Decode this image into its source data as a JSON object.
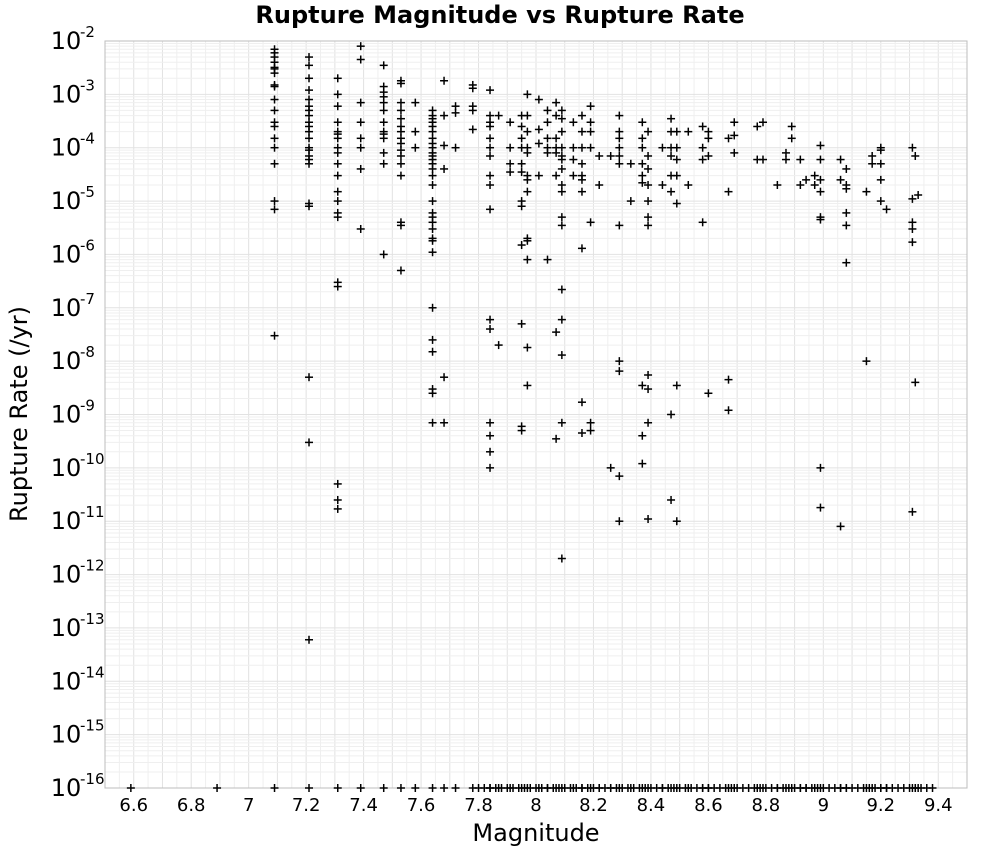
{
  "chart_data": {
    "type": "scatter",
    "title": "Rupture Magnitude vs Rupture Rate",
    "xlabel": "Magnitude",
    "ylabel": "Rupture Rate (/yr)",
    "xlim": [
      6.5,
      9.5
    ],
    "ylim": [
      1e-16,
      0.01
    ],
    "yscale": "log",
    "grid": true,
    "marker": "plus",
    "x_ticks": [
      "6.6",
      "6.8",
      "7",
      "7.2",
      "7.4",
      "7.6",
      "7.8",
      "8",
      "8.2",
      "8.4",
      "8.6",
      "8.8",
      "9",
      "9.2",
      "9.4"
    ],
    "y_ticks": [
      {
        "base": "10",
        "exp": "-2"
      },
      {
        "base": "10",
        "exp": "-3"
      },
      {
        "base": "10",
        "exp": "-4"
      },
      {
        "base": "10",
        "exp": "-5"
      },
      {
        "base": "10",
        "exp": "-6"
      },
      {
        "base": "10",
        "exp": "-7"
      },
      {
        "base": "10",
        "exp": "-8"
      },
      {
        "base": "10",
        "exp": "-9"
      },
      {
        "base": "10",
        "exp": "-10"
      },
      {
        "base": "10",
        "exp": "-11"
      },
      {
        "base": "10",
        "exp": "-12"
      },
      {
        "base": "10",
        "exp": "-13"
      },
      {
        "base": "10",
        "exp": "-14"
      },
      {
        "base": "10",
        "exp": "-15"
      },
      {
        "base": "10",
        "exp": "-16"
      }
    ],
    "points": [
      [
        7.09,
        0.007
      ],
      [
        7.09,
        0.006
      ],
      [
        7.09,
        0.005
      ],
      [
        7.09,
        0.004
      ],
      [
        7.09,
        0.0032
      ],
      [
        7.09,
        0.003
      ],
      [
        7.09,
        0.0025
      ],
      [
        7.09,
        0.0015
      ],
      [
        7.09,
        0.0014
      ],
      [
        7.09,
        0.0008
      ],
      [
        7.09,
        0.0005
      ],
      [
        7.09,
        0.0003
      ],
      [
        7.09,
        0.00025
      ],
      [
        7.09,
        0.00015
      ],
      [
        7.09,
        0.0001
      ],
      [
        7.09,
        5e-05
      ],
      [
        7.09,
        1e-05
      ],
      [
        7.09,
        7e-06
      ],
      [
        7.09,
        3e-08
      ],
      [
        7.21,
        0.005
      ],
      [
        7.21,
        0.0035
      ],
      [
        7.21,
        0.002
      ],
      [
        7.21,
        0.0012
      ],
      [
        7.21,
        0.0008
      ],
      [
        7.21,
        0.0006
      ],
      [
        7.21,
        0.0005
      ],
      [
        7.21,
        0.0004
      ],
      [
        7.21,
        0.0003
      ],
      [
        7.21,
        0.00025
      ],
      [
        7.21,
        0.0002
      ],
      [
        7.21,
        0.00015
      ],
      [
        7.21,
        0.0001
      ],
      [
        7.21,
        9e-05
      ],
      [
        7.21,
        7e-05
      ],
      [
        7.21,
        6e-05
      ],
      [
        7.21,
        5e-05
      ],
      [
        7.21,
        9e-06
      ],
      [
        7.21,
        8e-06
      ],
      [
        7.21,
        5e-09
      ],
      [
        7.21,
        3e-10
      ],
      [
        7.21,
        6e-14
      ],
      [
        7.31,
        0.002
      ],
      [
        7.31,
        0.001
      ],
      [
        7.31,
        0.0006
      ],
      [
        7.31,
        0.0003
      ],
      [
        7.31,
        0.0002
      ],
      [
        7.31,
        0.00018
      ],
      [
        7.31,
        0.00015
      ],
      [
        7.31,
        0.0001
      ],
      [
        7.31,
        8e-05
      ],
      [
        7.31,
        5e-05
      ],
      [
        7.31,
        3e-05
      ],
      [
        7.31,
        1.5e-05
      ],
      [
        7.31,
        1e-05
      ],
      [
        7.31,
        6e-06
      ],
      [
        7.31,
        5e-06
      ],
      [
        7.31,
        3e-07
      ],
      [
        7.31,
        2.5e-07
      ],
      [
        7.31,
        5e-11
      ],
      [
        7.31,
        2.5e-11
      ],
      [
        7.31,
        1.7e-11
      ],
      [
        7.39,
        0.008
      ],
      [
        7.39,
        0.0045
      ],
      [
        7.39,
        0.0007
      ],
      [
        7.39,
        0.0003
      ],
      [
        7.39,
        0.00015
      ],
      [
        7.39,
        0.0001
      ],
      [
        7.39,
        4e-05
      ],
      [
        7.39,
        3e-06
      ],
      [
        7.47,
        0.0035
      ],
      [
        7.47,
        0.0014
      ],
      [
        7.47,
        0.0011
      ],
      [
        7.47,
        0.0009
      ],
      [
        7.47,
        0.0007
      ],
      [
        7.47,
        0.0005
      ],
      [
        7.47,
        0.0003
      ],
      [
        7.47,
        0.0002
      ],
      [
        7.47,
        0.00018
      ],
      [
        7.47,
        0.00015
      ],
      [
        7.47,
        8e-05
      ],
      [
        7.47,
        5e-05
      ],
      [
        7.47,
        1e-06
      ],
      [
        7.53,
        0.0018
      ],
      [
        7.53,
        0.0016
      ],
      [
        7.53,
        0.0007
      ],
      [
        7.53,
        0.0005
      ],
      [
        7.53,
        0.00035
      ],
      [
        7.53,
        0.00025
      ],
      [
        7.53,
        0.0002
      ],
      [
        7.53,
        0.00015
      ],
      [
        7.53,
        0.00012
      ],
      [
        7.53,
        9e-05
      ],
      [
        7.53,
        7e-05
      ],
      [
        7.53,
        5e-05
      ],
      [
        7.53,
        3e-05
      ],
      [
        7.53,
        4e-06
      ],
      [
        7.53,
        3.5e-06
      ],
      [
        7.53,
        5e-07
      ],
      [
        7.58,
        0.0007
      ],
      [
        7.58,
        0.0002
      ],
      [
        7.58,
        0.0001
      ],
      [
        7.64,
        0.0005
      ],
      [
        7.64,
        0.0004
      ],
      [
        7.64,
        0.00035
      ],
      [
        7.64,
        0.0003
      ],
      [
        7.64,
        0.00025
      ],
      [
        7.64,
        0.0002
      ],
      [
        7.64,
        0.00015
      ],
      [
        7.64,
        0.00012
      ],
      [
        7.64,
        0.0001
      ],
      [
        7.64,
        8e-05
      ],
      [
        7.64,
        7e-05
      ],
      [
        7.64,
        6e-05
      ],
      [
        7.64,
        5e-05
      ],
      [
        7.64,
        4e-05
      ],
      [
        7.64,
        3e-05
      ],
      [
        7.64,
        2e-05
      ],
      [
        7.64,
        1e-05
      ],
      [
        7.64,
        6e-06
      ],
      [
        7.64,
        5e-06
      ],
      [
        7.64,
        4e-06
      ],
      [
        7.64,
        3e-06
      ],
      [
        7.64,
        2e-06
      ],
      [
        7.64,
        1.8e-06
      ],
      [
        7.64,
        1.1e-06
      ],
      [
        7.64,
        1e-07
      ],
      [
        7.64,
        2.5e-08
      ],
      [
        7.64,
        1.5e-08
      ],
      [
        7.64,
        3e-09
      ],
      [
        7.64,
        2.5e-09
      ],
      [
        7.64,
        7e-10
      ],
      [
        7.68,
        0.0018
      ],
      [
        7.68,
        0.0004
      ],
      [
        7.68,
        0.00011
      ],
      [
        7.68,
        4e-05
      ],
      [
        7.68,
        5e-09
      ],
      [
        7.68,
        7e-10
      ],
      [
        7.72,
        0.0006
      ],
      [
        7.72,
        0.00045
      ],
      [
        7.72,
        0.0001
      ],
      [
        7.78,
        0.0015
      ],
      [
        7.78,
        0.0013
      ],
      [
        7.78,
        0.0006
      ],
      [
        7.78,
        0.0005
      ],
      [
        7.78,
        0.00022
      ],
      [
        7.84,
        0.0012
      ],
      [
        7.84,
        0.0004
      ],
      [
        7.84,
        0.0003
      ],
      [
        7.84,
        0.00025
      ],
      [
        7.84,
        0.00015
      ],
      [
        7.84,
        0.0001
      ],
      [
        7.84,
        7e-05
      ],
      [
        7.84,
        3e-05
      ],
      [
        7.84,
        2e-05
      ],
      [
        7.84,
        7e-06
      ],
      [
        7.84,
        6e-08
      ],
      [
        7.84,
        4e-08
      ],
      [
        7.84,
        7e-10
      ],
      [
        7.84,
        4e-10
      ],
      [
        7.84,
        2e-10
      ],
      [
        7.84,
        1e-10
      ],
      [
        7.87,
        0.0004
      ],
      [
        7.87,
        2e-08
      ],
      [
        7.91,
        0.0003
      ],
      [
        7.91,
        0.0001
      ],
      [
        7.91,
        5e-05
      ],
      [
        7.91,
        3.5e-05
      ],
      [
        7.95,
        0.0004
      ],
      [
        7.95,
        0.00025
      ],
      [
        7.95,
        0.00015
      ],
      [
        7.95,
        0.0001
      ],
      [
        7.95,
        5e-05
      ],
      [
        7.95,
        3.5e-05
      ],
      [
        7.95,
        1e-05
      ],
      [
        7.95,
        8e-06
      ],
      [
        7.95,
        1.5e-06
      ],
      [
        7.95,
        5e-08
      ],
      [
        7.95,
        5e-10
      ],
      [
        7.95,
        6e-10
      ],
      [
        7.97,
        0.001
      ],
      [
        7.97,
        0.0004
      ],
      [
        7.97,
        0.0002
      ],
      [
        7.97,
        0.0001
      ],
      [
        7.97,
        8e-05
      ],
      [
        7.97,
        3e-05
      ],
      [
        7.97,
        2.5e-05
      ],
      [
        7.97,
        1.5e-05
      ],
      [
        7.97,
        2e-06
      ],
      [
        7.97,
        1.8e-06
      ],
      [
        7.97,
        8e-07
      ],
      [
        7.97,
        1.8e-08
      ],
      [
        7.97,
        3.5e-09
      ],
      [
        8.01,
        0.0008
      ],
      [
        8.01,
        0.00022
      ],
      [
        8.01,
        0.00012
      ],
      [
        8.01,
        3e-05
      ],
      [
        8.04,
        0.0005
      ],
      [
        8.04,
        0.0003
      ],
      [
        8.04,
        0.00015
      ],
      [
        8.04,
        0.0001
      ],
      [
        8.04,
        8e-05
      ],
      [
        8.04,
        8e-07
      ],
      [
        8.07,
        0.0007
      ],
      [
        8.07,
        0.0004
      ],
      [
        8.07,
        0.00015
      ],
      [
        8.07,
        0.0001
      ],
      [
        8.07,
        8e-05
      ],
      [
        8.07,
        3e-05
      ],
      [
        8.07,
        3.5e-08
      ],
      [
        8.07,
        3.5e-10
      ],
      [
        8.09,
        0.0005
      ],
      [
        8.09,
        0.00035
      ],
      [
        8.09,
        0.0002
      ],
      [
        8.09,
        0.0001
      ],
      [
        8.09,
        7e-05
      ],
      [
        8.09,
        6e-05
      ],
      [
        8.09,
        4e-05
      ],
      [
        8.09,
        2e-05
      ],
      [
        8.09,
        1.5e-05
      ],
      [
        8.09,
        5e-06
      ],
      [
        8.09,
        3.5e-06
      ],
      [
        8.09,
        2.2e-07
      ],
      [
        8.09,
        6e-08
      ],
      [
        8.09,
        1.3e-08
      ],
      [
        8.09,
        7e-10
      ],
      [
        8.09,
        2e-12
      ],
      [
        8.13,
        0.0003
      ],
      [
        8.13,
        0.0001
      ],
      [
        8.13,
        6e-05
      ],
      [
        8.13,
        3e-05
      ],
      [
        8.16,
        0.0004
      ],
      [
        8.16,
        0.0002
      ],
      [
        8.16,
        0.0001
      ],
      [
        8.16,
        5e-05
      ],
      [
        8.16,
        3e-05
      ],
      [
        8.16,
        2.5e-05
      ],
      [
        8.16,
        1.5e-05
      ],
      [
        8.16,
        1.3e-06
      ],
      [
        8.16,
        1.7e-09
      ],
      [
        8.16,
        4.5e-10
      ],
      [
        8.19,
        0.0006
      ],
      [
        8.19,
        0.0003
      ],
      [
        8.19,
        0.0002
      ],
      [
        8.19,
        0.0001
      ],
      [
        8.19,
        4e-06
      ],
      [
        8.19,
        7e-10
      ],
      [
        8.19,
        5e-10
      ],
      [
        8.22,
        7e-05
      ],
      [
        8.22,
        2e-05
      ],
      [
        8.26,
        7e-05
      ],
      [
        8.26,
        1e-10
      ],
      [
        8.29,
        0.0004
      ],
      [
        8.29,
        0.0002
      ],
      [
        8.29,
        0.00015
      ],
      [
        8.29,
        0.0001
      ],
      [
        8.29,
        7e-05
      ],
      [
        8.29,
        5e-05
      ],
      [
        8.29,
        3.5e-06
      ],
      [
        8.29,
        1e-08
      ],
      [
        8.29,
        6.5e-09
      ],
      [
        8.29,
        7e-11
      ],
      [
        8.29,
        1e-11
      ],
      [
        8.33,
        1e-05
      ],
      [
        8.33,
        5e-05
      ],
      [
        8.37,
        0.0003
      ],
      [
        8.37,
        0.00015
      ],
      [
        8.37,
        0.0001
      ],
      [
        8.37,
        5e-05
      ],
      [
        8.37,
        3e-05
      ],
      [
        8.37,
        2.2e-05
      ],
      [
        8.37,
        3.5e-09
      ],
      [
        8.37,
        4e-10
      ],
      [
        8.37,
        1.2e-10
      ],
      [
        8.39,
        0.0002
      ],
      [
        8.39,
        7e-05
      ],
      [
        8.39,
        4e-05
      ],
      [
        8.39,
        2e-05
      ],
      [
        8.39,
        1e-05
      ],
      [
        8.39,
        5e-06
      ],
      [
        8.39,
        3.5e-06
      ],
      [
        8.39,
        5.5e-09
      ],
      [
        8.39,
        3e-09
      ],
      [
        8.39,
        7e-10
      ],
      [
        8.39,
        1.1e-11
      ],
      [
        8.44,
        0.0001
      ],
      [
        8.44,
        2e-05
      ],
      [
        8.47,
        0.00035
      ],
      [
        8.47,
        0.0002
      ],
      [
        8.47,
        0.0001
      ],
      [
        8.47,
        7e-05
      ],
      [
        8.47,
        3e-05
      ],
      [
        8.47,
        1.5e-05
      ],
      [
        8.47,
        1e-09
      ],
      [
        8.47,
        2.5e-11
      ],
      [
        8.49,
        0.0002
      ],
      [
        8.49,
        0.0001
      ],
      [
        8.49,
        6e-05
      ],
      [
        8.49,
        3e-05
      ],
      [
        8.49,
        9e-06
      ],
      [
        8.49,
        3.5e-09
      ],
      [
        8.49,
        1e-11
      ],
      [
        8.53,
        0.0002
      ],
      [
        8.53,
        2e-05
      ],
      [
        8.58,
        0.00025
      ],
      [
        8.58,
        0.0001
      ],
      [
        8.58,
        6e-05
      ],
      [
        8.58,
        4e-06
      ],
      [
        8.6,
        0.0002
      ],
      [
        8.6,
        0.00015
      ],
      [
        8.6,
        7e-05
      ],
      [
        8.6,
        2.5e-09
      ],
      [
        8.67,
        0.00015
      ],
      [
        8.67,
        1.5e-05
      ],
      [
        8.67,
        4.5e-09
      ],
      [
        8.67,
        1.2e-09
      ],
      [
        8.69,
        0.0003
      ],
      [
        8.69,
        0.00017
      ],
      [
        8.69,
        8e-05
      ],
      [
        8.77,
        0.00025
      ],
      [
        8.77,
        6e-05
      ],
      [
        8.79,
        0.0003
      ],
      [
        8.79,
        6e-05
      ],
      [
        8.84,
        2e-05
      ],
      [
        8.87,
        8e-05
      ],
      [
        8.87,
        6e-05
      ],
      [
        8.89,
        0.00025
      ],
      [
        8.89,
        0.00015
      ],
      [
        8.92,
        6e-05
      ],
      [
        8.92,
        2e-05
      ],
      [
        8.94,
        2.5e-05
      ],
      [
        8.97,
        3e-05
      ],
      [
        8.97,
        2e-05
      ],
      [
        8.99,
        0.00011
      ],
      [
        8.99,
        6e-05
      ],
      [
        8.99,
        2.5e-05
      ],
      [
        8.99,
        1.5e-05
      ],
      [
        8.99,
        5e-06
      ],
      [
        8.99,
        4.5e-06
      ],
      [
        8.99,
        1e-10
      ],
      [
        8.99,
        1.8e-11
      ],
      [
        9.06,
        6e-05
      ],
      [
        9.06,
        2.5e-05
      ],
      [
        9.06,
        8e-12
      ],
      [
        9.08,
        4e-05
      ],
      [
        9.08,
        2e-05
      ],
      [
        9.08,
        1.7e-05
      ],
      [
        9.08,
        6e-06
      ],
      [
        9.08,
        3.5e-06
      ],
      [
        9.08,
        7e-07
      ],
      [
        9.15,
        1.5e-05
      ],
      [
        9.15,
        1e-08
      ],
      [
        9.17,
        7e-05
      ],
      [
        9.17,
        5e-05
      ],
      [
        9.2,
        0.0001
      ],
      [
        9.2,
        9e-05
      ],
      [
        9.2,
        5e-05
      ],
      [
        9.2,
        2.5e-05
      ],
      [
        9.2,
        1e-05
      ],
      [
        9.22,
        7e-06
      ],
      [
        9.31,
        0.0001
      ],
      [
        9.31,
        1.1e-05
      ],
      [
        9.31,
        4e-06
      ],
      [
        9.31,
        3e-06
      ],
      [
        9.31,
        1.7e-06
      ],
      [
        9.31,
        1.5e-11
      ],
      [
        9.32,
        7e-05
      ],
      [
        9.32,
        4e-09
      ],
      [
        9.33,
        1.3e-05
      ]
    ],
    "floor_points_x": [
      6.59,
      6.89,
      7.09,
      7.21,
      7.31,
      7.39,
      7.47,
      7.53,
      7.58,
      7.64,
      7.68,
      7.72,
      7.78,
      7.84,
      7.87,
      7.91,
      7.95,
      7.97,
      8.01,
      8.04,
      8.07,
      8.09,
      8.13,
      8.16,
      8.19,
      8.22,
      8.26,
      8.29,
      8.33,
      8.37,
      8.39,
      8.44,
      8.47,
      8.49,
      8.53,
      8.58,
      8.6,
      8.67,
      8.69,
      8.77,
      8.79,
      8.84,
      8.87,
      8.89,
      8.92,
      8.94,
      8.97,
      8.99,
      9.06,
      9.08,
      9.15,
      9.17,
      9.2,
      9.22,
      9.31,
      9.32,
      9.33
    ],
    "floor_fill_range": [
      7.8,
      9.38
    ]
  }
}
